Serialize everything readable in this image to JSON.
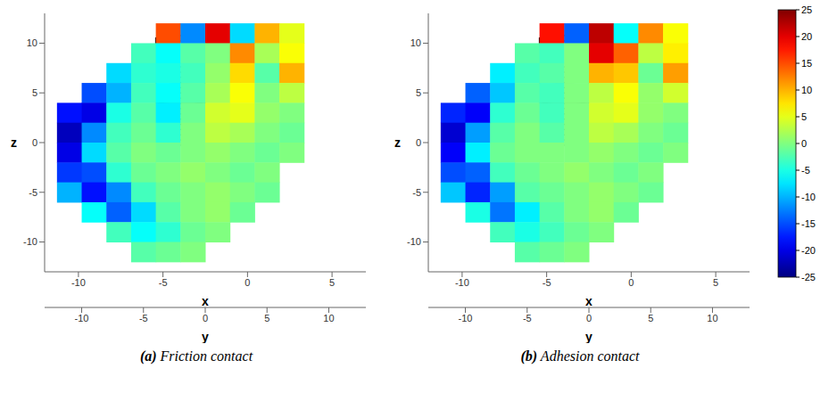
{
  "chart_data": [
    {
      "type": "heatmap",
      "label": "(a)",
      "title": "Friction contact",
      "x_label": "x",
      "y_label": "y",
      "z_label": "z",
      "xlim": [
        -12,
        7
      ],
      "xticks": [
        -10,
        -5,
        0,
        5
      ],
      "ylim": [
        -13,
        13
      ],
      "yticks": [
        -10,
        -5,
        0,
        5,
        10
      ],
      "zlim": [
        -13,
        13
      ],
      "zticks": [
        -10,
        -5,
        0,
        5,
        10
      ],
      "grid": false,
      "implant": {
        "y": [
          -4,
          0
        ],
        "z": [
          0,
          10.5
        ]
      },
      "heatmap": {
        "y": [
          -11,
          -9,
          -7,
          -5,
          -3,
          -1,
          1,
          3,
          5,
          7,
          9,
          11
        ],
        "z": [
          11,
          9,
          7,
          5,
          3,
          1,
          -1,
          -3,
          -5,
          -7,
          -9,
          -11
        ],
        "values": [
          [
            null,
            null,
            null,
            null,
            15,
            -12,
            20,
            -8,
            10,
            5,
            null,
            null
          ],
          [
            null,
            null,
            null,
            -3,
            -6,
            -2,
            0,
            12,
            2,
            6,
            null,
            null
          ],
          [
            null,
            null,
            -8,
            -4,
            -5,
            -3,
            1,
            8,
            -2,
            10,
            null,
            null
          ],
          [
            null,
            -15,
            -10,
            -3,
            -6,
            -2,
            2,
            6,
            0,
            3,
            null,
            null
          ],
          [
            -18,
            -20,
            -5,
            -2,
            -7,
            -1,
            4,
            5,
            1,
            0,
            null,
            null
          ],
          [
            -22,
            -12,
            -3,
            -1,
            -4,
            0,
            3,
            2,
            0,
            -1,
            null,
            null
          ],
          [
            -20,
            -8,
            -2,
            0,
            -1,
            0,
            1,
            0,
            -1,
            0,
            null,
            null
          ],
          [
            -16,
            -15,
            -4,
            -1,
            0,
            1,
            0,
            -1,
            0,
            null,
            null,
            null
          ],
          [
            -10,
            -18,
            -12,
            -3,
            -1,
            0,
            1,
            0,
            -1,
            null,
            null,
            null
          ],
          [
            null,
            -6,
            -14,
            -8,
            -2,
            0,
            1,
            -1,
            null,
            null,
            null,
            null
          ],
          [
            null,
            null,
            -3,
            -6,
            -4,
            -1,
            0,
            null,
            null,
            null,
            null,
            null
          ],
          [
            null,
            null,
            null,
            -2,
            -1,
            0,
            null,
            null,
            null,
            null,
            null,
            null
          ]
        ]
      }
    },
    {
      "type": "heatmap",
      "label": "(b)",
      "title": "Adhesion contact",
      "x_label": "x",
      "y_label": "y",
      "z_label": "z",
      "xlim": [
        -12,
        7
      ],
      "xticks": [
        -10,
        -5,
        0,
        5
      ],
      "ylim": [
        -13,
        13
      ],
      "yticks": [
        -10,
        -5,
        0,
        5,
        10
      ],
      "zlim": [
        -13,
        13
      ],
      "zticks": [
        -10,
        -5,
        0,
        5,
        10
      ],
      "grid": false,
      "implant": {
        "y": [
          -4,
          0
        ],
        "z": [
          0,
          10.5
        ]
      },
      "heatmap": {
        "y": [
          -11,
          -9,
          -7,
          -5,
          -3,
          -1,
          1,
          3,
          5,
          7,
          9,
          11
        ],
        "z": [
          11,
          9,
          7,
          5,
          3,
          1,
          -1,
          -3,
          -5,
          -7,
          -9,
          -11
        ],
        "values": [
          [
            null,
            null,
            null,
            null,
            18,
            -14,
            22,
            -6,
            12,
            6,
            null,
            null
          ],
          [
            null,
            null,
            null,
            -2,
            -3,
            0,
            20,
            14,
            3,
            7,
            null,
            null
          ],
          [
            null,
            null,
            -7,
            -3,
            -2,
            0,
            10,
            9,
            -1,
            11,
            null,
            null
          ],
          [
            null,
            -14,
            -9,
            -2,
            -3,
            0,
            3,
            6,
            1,
            4,
            null,
            null
          ],
          [
            -17,
            -19,
            -4,
            -1,
            -3,
            0,
            4,
            5,
            1,
            0,
            null,
            null
          ],
          [
            -21,
            -11,
            -2,
            0,
            -2,
            0,
            3,
            2,
            0,
            -1,
            null,
            null
          ],
          [
            -19,
            -7,
            -1,
            0,
            0,
            0,
            1,
            0,
            -1,
            0,
            null,
            null
          ],
          [
            -15,
            -14,
            -3,
            -1,
            0,
            1,
            0,
            -1,
            0,
            null,
            null,
            null
          ],
          [
            -9,
            -17,
            -11,
            -2,
            -1,
            0,
            1,
            0,
            -1,
            null,
            null,
            null
          ],
          [
            null,
            -5,
            -13,
            -7,
            -2,
            0,
            1,
            -1,
            null,
            null,
            null,
            null
          ],
          [
            null,
            null,
            -3,
            -5,
            -3,
            -1,
            0,
            null,
            null,
            null,
            null,
            null
          ],
          [
            null,
            null,
            null,
            -2,
            -1,
            0,
            null,
            null,
            null,
            null,
            null,
            null
          ]
        ]
      }
    }
  ],
  "colorbar": {
    "range": [
      -25,
      25
    ],
    "ticks": [
      -25,
      -20,
      -15,
      -10,
      -5,
      0,
      5,
      10,
      15,
      20,
      25
    ]
  }
}
